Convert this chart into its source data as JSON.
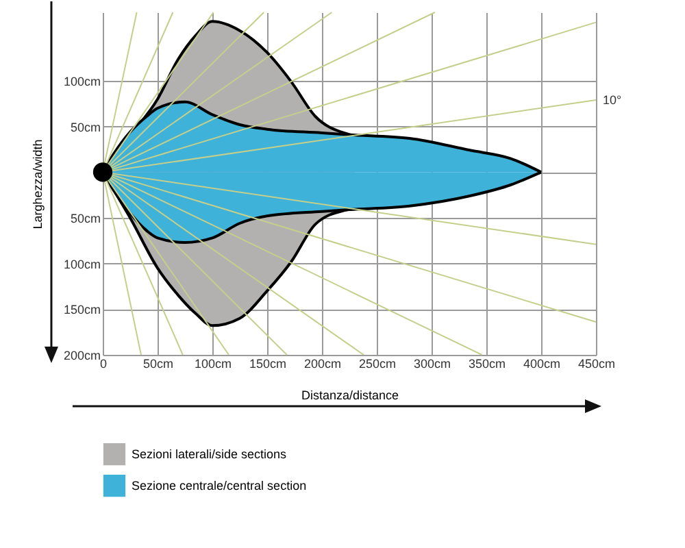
{
  "chart_data": {
    "type": "area",
    "xlabel": "Distanza/distance",
    "ylabel": "Larghezza/width",
    "xlim": [
      0,
      450
    ],
    "ylim": [
      -200,
      175
    ],
    "xticks": [
      0,
      {
        "value": 50,
        "label": "50cm"
      },
      {
        "value": 100,
        "label": "100cm"
      },
      {
        "value": 150,
        "label": "150cm"
      },
      {
        "value": 200,
        "label": "200cm"
      },
      {
        "value": 250,
        "label": "250cm"
      },
      {
        "value": 300,
        "label": "300cm"
      },
      {
        "value": 350,
        "label": "350cm"
      },
      {
        "value": 400,
        "label": "400cm"
      },
      {
        "value": 450,
        "label": "450cm"
      }
    ],
    "yticks": [
      {
        "value": 100,
        "label": "100cm"
      },
      {
        "value": 50,
        "label": "50cm"
      },
      {
        "value": 0,
        "label": null
      },
      {
        "value": -50,
        "label": "50cm"
      },
      {
        "value": -100,
        "label": "100cm"
      },
      {
        "value": -150,
        "label": "150cm"
      },
      {
        "value": -200,
        "label": "200cm"
      }
    ],
    "grid": true,
    "legend": "bottom left",
    "annotations": [
      {
        "text": "10°",
        "x": 450,
        "y": 79
      }
    ],
    "series": [
      {
        "name": "Sezioni laterali/side sections",
        "color": "#b3b1b0",
        "x": [
          0,
          25,
          50,
          69,
          85,
          100,
          125,
          150,
          172,
          194,
          220,
          230
        ],
        "values": [
          0,
          40,
          80,
          124,
          150,
          165,
          155,
          131,
          99,
          61,
          43,
          40
        ]
      },
      {
        "color": "#b3b1b0",
        "x": [
          0,
          25,
          50,
          69,
          85,
          100,
          125,
          150,
          172,
          194,
          220,
          230
        ],
        "values": [
          0,
          -50,
          -105,
          -135,
          -155,
          -168,
          -160,
          -130,
          -98,
          -57,
          -42,
          -40
        ]
      },
      {
        "name": "Sezione centrale/central section",
        "color": "#3eb2d8",
        "x": [
          0,
          10,
          25,
          40,
          50,
          75,
          100,
          125,
          150,
          200,
          225,
          280,
          335,
          372,
          400
        ],
        "values": [
          0,
          20,
          44,
          61,
          70,
          77,
          63,
          52,
          47,
          43,
          41,
          37,
          24,
          15,
          0
        ]
      },
      {
        "color": "#3eb2d8",
        "x": [
          0,
          10,
          25,
          40,
          50,
          75,
          100,
          125,
          150,
          200,
          225,
          280,
          335,
          372,
          400
        ],
        "values": [
          0,
          -20,
          -45,
          -64,
          -72,
          -77,
          -72,
          -56,
          -48,
          -43,
          -41,
          -37,
          -26,
          -14,
          0
        ]
      },
      {
        "type": "line",
        "color": "#c5cf8c",
        "x": [
          450,
          0,
          450
        ],
        "values": [
          79,
          0,
          -79
        ]
      },
      {
        "type": "line",
        "color": "#c5cf8c",
        "x": [
          450,
          0,
          450
        ],
        "values": [
          164,
          0,
          -164
        ]
      },
      {
        "type": "line",
        "color": "#c5cf8c",
        "x": [
          303,
          0,
          346
        ],
        "values": [
          175,
          0,
          -200
        ]
      },
      {
        "type": "line",
        "color": "#c5cf8c",
        "x": [
          209,
          0,
          238
        ],
        "values": [
          175,
          0,
          -200
        ]
      },
      {
        "type": "line",
        "color": "#c5cf8c",
        "x": [
          147,
          0,
          168
        ],
        "values": [
          175,
          0,
          -200
        ]
      },
      {
        "type": "line",
        "color": "#c5cf8c",
        "x": [
          101,
          0,
          115
        ],
        "values": [
          175,
          0,
          -200
        ]
      },
      {
        "type": "line",
        "color": "#c5cf8c",
        "x": [
          64,
          0,
          73
        ],
        "values": [
          175,
          0,
          -200
        ]
      },
      {
        "type": "line",
        "color": "#c5cf8c",
        "x": [
          31,
          0,
          35
        ],
        "values": [
          175,
          0,
          -200
        ]
      },
      {
        "type": "scatter",
        "marker": "circle",
        "color": "#000000",
        "x": [
          0
        ],
        "values": [
          0
        ]
      }
    ]
  }
}
